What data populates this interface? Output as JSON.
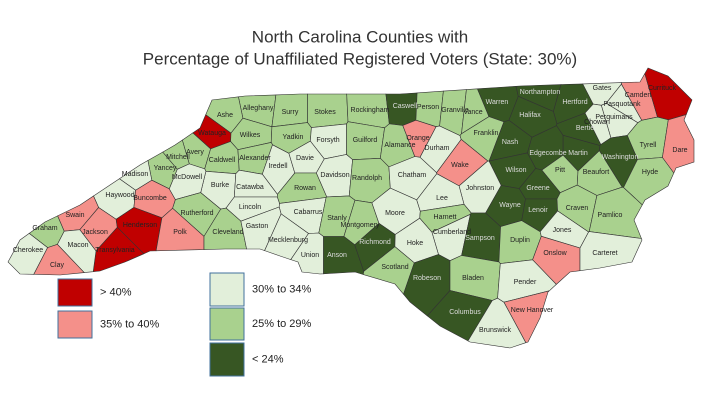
{
  "title": [
    "North Carolina Counties with",
    "Percentage of Unaffiliated Registered Voters (State: 30%)"
  ],
  "legend": [
    {
      "label": "> 40%",
      "color": "#c00000"
    },
    {
      "label": "35% to 40%",
      "color": "#f4908a"
    },
    {
      "label": "30% to 34%",
      "color": "#e2efda"
    },
    {
      "label": "25% to 29%",
      "color": "#a9d18e"
    },
    {
      "label": "< 24%",
      "color": "#375623"
    }
  ],
  "counties": [
    {
      "name": "Alleghany",
      "class": 3
    },
    {
      "name": "Ashe",
      "class": 3
    },
    {
      "name": "Surry",
      "class": 3
    },
    {
      "name": "Stokes",
      "class": 3
    },
    {
      "name": "Rockingham",
      "class": 3
    },
    {
      "name": "Caswell",
      "class": 4
    },
    {
      "name": "Person",
      "class": 3
    },
    {
      "name": "Granville",
      "class": 3
    },
    {
      "name": "Vance",
      "class": 3
    },
    {
      "name": "Warren",
      "class": 4
    },
    {
      "name": "Northampton",
      "class": 4
    },
    {
      "name": "Hertford",
      "class": 4
    },
    {
      "name": "Gates",
      "class": 2
    },
    {
      "name": "Camden",
      "class": 1
    },
    {
      "name": "Currituck",
      "class": 0
    },
    {
      "name": "Pasquotank",
      "class": 2
    },
    {
      "name": "Perquimans",
      "class": 2
    },
    {
      "name": "Chowan",
      "class": 2
    },
    {
      "name": "Watauga",
      "class": 0
    },
    {
      "name": "Wilkes",
      "class": 3
    },
    {
      "name": "Yadkin",
      "class": 3
    },
    {
      "name": "Forsyth",
      "class": 2
    },
    {
      "name": "Guilford",
      "class": 3
    },
    {
      "name": "Alamance",
      "class": 3
    },
    {
      "name": "Orange",
      "class": 1
    },
    {
      "name": "Durham",
      "class": 2
    },
    {
      "name": "Halifax",
      "class": 4
    },
    {
      "name": "Franklin",
      "class": 3
    },
    {
      "name": "Bertie",
      "class": 4
    },
    {
      "name": "Martin",
      "class": 4
    },
    {
      "name": "Washington",
      "class": 4
    },
    {
      "name": "Tyrell",
      "class": 3
    },
    {
      "name": "Dare",
      "class": 1
    },
    {
      "name": "Avery",
      "class": 3
    },
    {
      "name": "Mitchell",
      "class": 3
    },
    {
      "name": "Caldwell",
      "class": 3
    },
    {
      "name": "Alexander",
      "class": 3
    },
    {
      "name": "Iredell",
      "class": 2
    },
    {
      "name": "Davie",
      "class": 2
    },
    {
      "name": "Davidson",
      "class": 2
    },
    {
      "name": "Randolph",
      "class": 3
    },
    {
      "name": "Chatham",
      "class": 2
    },
    {
      "name": "Wake",
      "class": 1
    },
    {
      "name": "Nash",
      "class": 4
    },
    {
      "name": "Edgecombe",
      "class": 4
    },
    {
      "name": "Yancey",
      "class": 3
    },
    {
      "name": "Madison",
      "class": 2
    },
    {
      "name": "Burke",
      "class": 2
    },
    {
      "name": "Catawba",
      "class": 2
    },
    {
      "name": "Rowan",
      "class": 3
    },
    {
      "name": "Wilson",
      "class": 4
    },
    {
      "name": "Pitt",
      "class": 3
    },
    {
      "name": "Beaufort",
      "class": 3
    },
    {
      "name": "Hyde",
      "class": 3
    },
    {
      "name": "Haywood",
      "class": 2
    },
    {
      "name": "Buncombe",
      "class": 1
    },
    {
      "name": "McDowell",
      "class": 2
    },
    {
      "name": "Johnston",
      "class": 2
    },
    {
      "name": "Greene",
      "class": 4
    },
    {
      "name": "Swain",
      "class": 1
    },
    {
      "name": "Rutherford",
      "class": 3
    },
    {
      "name": "Lincoln",
      "class": 2
    },
    {
      "name": "Cabarrus",
      "class": 2
    },
    {
      "name": "Stanly",
      "class": 3
    },
    {
      "name": "Montgomery",
      "class": 3
    },
    {
      "name": "Moore",
      "class": 2
    },
    {
      "name": "Lee",
      "class": 2
    },
    {
      "name": "Harnett",
      "class": 3
    },
    {
      "name": "Wayne",
      "class": 4
    },
    {
      "name": "Lenoir",
      "class": 4
    },
    {
      "name": "Craven",
      "class": 3
    },
    {
      "name": "Pamlico",
      "class": 3
    },
    {
      "name": "Graham",
      "class": 3
    },
    {
      "name": "Jackson",
      "class": 1
    },
    {
      "name": "Henderson",
      "class": 0
    },
    {
      "name": "Polk",
      "class": 1
    },
    {
      "name": "Cleveland",
      "class": 3
    },
    {
      "name": "Gaston",
      "class": 2
    },
    {
      "name": "Mecklenburg",
      "class": 2
    },
    {
      "name": "Transylvania",
      "class": 0
    },
    {
      "name": "Cumberland",
      "class": 2
    },
    {
      "name": "Sampson",
      "class": 4
    },
    {
      "name": "Duplin",
      "class": 3
    },
    {
      "name": "Jones",
      "class": 2
    },
    {
      "name": "Cherokee",
      "class": 2
    },
    {
      "name": "Macon",
      "class": 2
    },
    {
      "name": "Clay",
      "class": 1
    },
    {
      "name": "Union",
      "class": 2
    },
    {
      "name": "Anson",
      "class": 4
    },
    {
      "name": "Richmond",
      "class": 4
    },
    {
      "name": "Hoke",
      "class": 2
    },
    {
      "name": "Scotland",
      "class": 3
    },
    {
      "name": "Onslow",
      "class": 1
    },
    {
      "name": "Carteret",
      "class": 2
    },
    {
      "name": "Robeson",
      "class": 4
    },
    {
      "name": "Bladen",
      "class": 3
    },
    {
      "name": "Pender",
      "class": 2
    },
    {
      "name": "Columbus",
      "class": 4
    },
    {
      "name": "New Hanover",
      "class": 1
    },
    {
      "name": "Brunswick",
      "class": 2
    }
  ]
}
